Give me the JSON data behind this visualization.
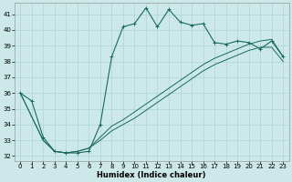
{
  "xlabel": "Humidex (Indice chaleur)",
  "bg_color": "#cce8e8",
  "grid_color": "#aad4d4",
  "line_color": "#1a6b5a",
  "line_color2": "#1a6b5a",
  "xlim": [
    -0.5,
    23.5
  ],
  "ylim": [
    31.7,
    41.7
  ],
  "yticks": [
    32,
    33,
    34,
    35,
    36,
    37,
    38,
    39,
    40,
    41
  ],
  "xticks": [
    0,
    1,
    2,
    3,
    4,
    5,
    6,
    7,
    8,
    9,
    10,
    11,
    12,
    13,
    14,
    15,
    16,
    17,
    18,
    19,
    20,
    21,
    22,
    23
  ],
  "series1_x": [
    0,
    1,
    2,
    3,
    4,
    5,
    6,
    7,
    8,
    9,
    10,
    11,
    12,
    13,
    14,
    15,
    16,
    17,
    18,
    19,
    20,
    21,
    22,
    23
  ],
  "series1_y": [
    36.0,
    35.5,
    33.2,
    32.3,
    32.2,
    32.2,
    32.3,
    34.0,
    38.3,
    40.2,
    40.4,
    41.4,
    40.2,
    41.3,
    40.5,
    40.3,
    40.4,
    39.2,
    39.1,
    39.3,
    39.2,
    38.8,
    39.3,
    38.3
  ],
  "series2_x": [
    0,
    2,
    3,
    4,
    5,
    6,
    7,
    8,
    9,
    10,
    11,
    12,
    13,
    14,
    15,
    16,
    17,
    18,
    19,
    20,
    21,
    22,
    23
  ],
  "series2_y": [
    36.0,
    33.0,
    32.3,
    32.2,
    32.3,
    32.5,
    33.2,
    33.9,
    34.3,
    34.8,
    35.3,
    35.8,
    36.3,
    36.8,
    37.3,
    37.8,
    38.2,
    38.5,
    38.8,
    39.1,
    39.3,
    39.4,
    38.3
  ],
  "series3_x": [
    0,
    2,
    3,
    4,
    5,
    6,
    7,
    8,
    9,
    10,
    11,
    12,
    13,
    14,
    15,
    16,
    17,
    18,
    19,
    20,
    21,
    22,
    23
  ],
  "series3_y": [
    36.0,
    33.0,
    32.3,
    32.2,
    32.3,
    32.5,
    33.0,
    33.6,
    34.0,
    34.4,
    34.9,
    35.4,
    35.9,
    36.4,
    36.9,
    37.4,
    37.8,
    38.1,
    38.4,
    38.7,
    38.9,
    38.9,
    38.0
  ],
  "xlabel_fontsize": 6.0,
  "tick_fontsize": 5.0,
  "linewidth1": 0.8,
  "linewidth2": 0.7,
  "markersize": 2.5
}
